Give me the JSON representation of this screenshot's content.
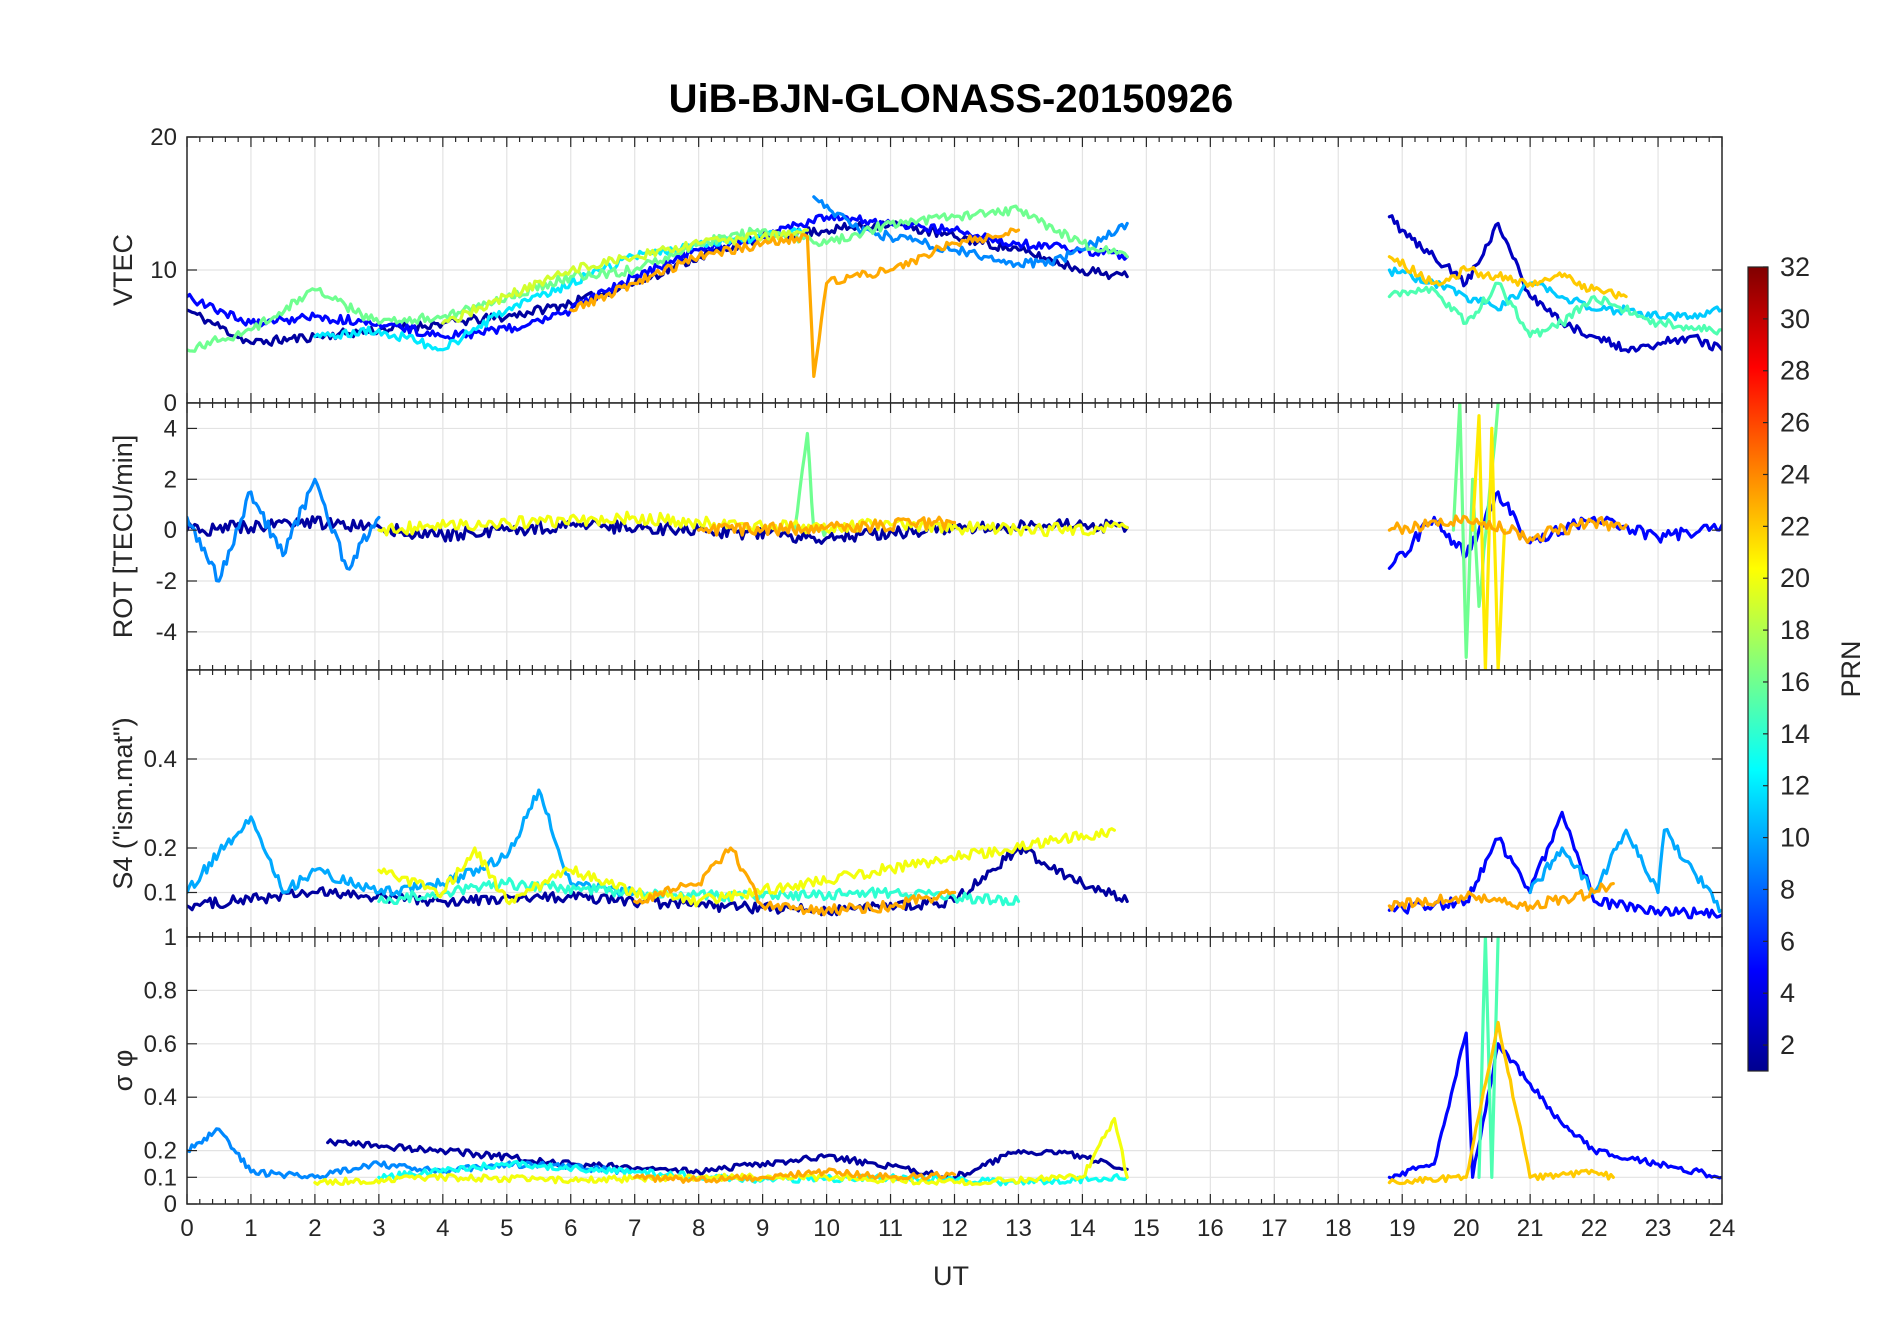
{
  "chart_data": {
    "type": "line",
    "title": "UiB-BJN-GLONASS-20150926",
    "xlabel": "UT",
    "xlim": [
      0,
      24
    ],
    "x_ticks": [
      "0",
      "1",
      "2",
      "3",
      "4",
      "5",
      "6",
      "7",
      "8",
      "9",
      "10",
      "11",
      "12",
      "13",
      "14",
      "15",
      "16",
      "17",
      "18",
      "19",
      "20",
      "21",
      "22",
      "23",
      "24"
    ],
    "grid": true,
    "legend": "colorbar-right",
    "data_gap": [
      14.7,
      18.8
    ],
    "colorbar": {
      "label": "PRN",
      "range": [
        1,
        32
      ],
      "ticks": [
        "2",
        "4",
        "6",
        "8",
        "10",
        "12",
        "14",
        "16",
        "18",
        "20",
        "22",
        "24",
        "26",
        "28",
        "30",
        "32"
      ]
    },
    "panels": [
      {
        "ylabel": "VTEC",
        "ylim": [
          0,
          20
        ],
        "yticks": [
          "0",
          "10",
          "20"
        ],
        "series": [
          {
            "prn": 2,
            "x": [
              0,
              1,
              2,
              3,
              4,
              5,
              6,
              7,
              8,
              9,
              10,
              11,
              12,
              13,
              14,
              14.7
            ],
            "y": [
              7,
              4.5,
              5,
              5.5,
              6,
              6.5,
              7.5,
              9,
              11,
              12.5,
              13,
              13.5,
              12.5,
              11.5,
              10,
              9.5
            ]
          },
          {
            "prn": 5,
            "x": [
              0,
              1,
              2,
              3,
              4,
              5,
              6,
              7,
              8,
              9,
              10,
              11,
              12,
              13,
              14,
              14.7
            ],
            "y": [
              8,
              6,
              6.5,
              6,
              5,
              5.5,
              7,
              9.5,
              11.5,
              12.5,
              14,
              13.5,
              13,
              12,
              11.5,
              11
            ]
          },
          {
            "prn": 9,
            "x": [
              9.8,
              10.5,
              11,
              11.5,
              12,
              12.5,
              13,
              13.5,
              14,
              14.7
            ],
            "y": [
              15.5,
              13,
              12.5,
              12,
              11.5,
              11,
              10.5,
              10.5,
              11.5,
              13.5
            ]
          },
          {
            "prn": 12,
            "x": [
              2,
              3,
              4,
              5,
              6,
              7,
              8,
              9,
              9.7
            ],
            "y": [
              5,
              5.5,
              4,
              7,
              9,
              11,
              12,
              12.5,
              13
            ]
          },
          {
            "prn": 16,
            "x": [
              0,
              1,
              2,
              3,
              4,
              5,
              6,
              7,
              8,
              9,
              10,
              11,
              12,
              13,
              14,
              14.7
            ],
            "y": [
              4,
              5.5,
              8.5,
              6,
              6.5,
              8,
              9.5,
              10,
              12,
              13,
              12,
              13.5,
              14,
              14.5,
              12,
              11
            ]
          },
          {
            "prn": 19,
            "x": [
              4,
              5,
              6,
              7,
              8,
              9,
              9.7
            ],
            "y": [
              6,
              8,
              10,
              11,
              12,
              12.5,
              13
            ]
          },
          {
            "prn": 23,
            "x": [
              6,
              7,
              8,
              9,
              9.7,
              9.8,
              10,
              11,
              12,
              13
            ],
            "y": [
              7,
              9,
              11,
              12,
              12.5,
              2,
              9,
              10,
              12,
              13
            ]
          },
          {
            "prn": 3,
            "x": [
              18.8,
              19,
              19.5,
              20,
              20.5,
              21,
              21.5,
              22,
              22.5,
              23,
              23.5,
              24
            ],
            "y": [
              14,
              13,
              11,
              9,
              13.5,
              8,
              6,
              5,
              4,
              4.5,
              5,
              4
            ]
          },
          {
            "prn": 11,
            "x": [
              18.8,
              19.5,
              20,
              20.5,
              21,
              21.5,
              22,
              22.5,
              23,
              23.5,
              24
            ],
            "y": [
              10,
              9,
              8,
              7,
              9,
              8,
              7,
              7,
              6.5,
              6.5,
              7
            ]
          },
          {
            "prn": 15,
            "x": [
              18.8,
              19.5,
              20,
              20.5,
              21,
              21.5,
              22,
              23,
              24
            ],
            "y": [
              8,
              8.5,
              6,
              9,
              5,
              6,
              8,
              6,
              5.5
            ]
          },
          {
            "prn": 22,
            "x": [
              18.8,
              19.5,
              20,
              20.5,
              21,
              21.5,
              22,
              22.5
            ],
            "y": [
              11,
              9,
              10,
              9.5,
              9,
              9.5,
              8.5,
              8
            ]
          }
        ]
      },
      {
        "ylabel": "ROT [TECU/min]",
        "ylim": [
          -5.5,
          5
        ],
        "yticks": [
          "-4",
          "-2",
          "0",
          "2",
          "4"
        ],
        "series": [
          {
            "prn": 2,
            "x": [
              0,
              2,
              4,
              6,
              8,
              10,
              12,
              14,
              14.7
            ],
            "y": [
              0,
              0.3,
              -0.2,
              0.2,
              0,
              -0.3,
              0.1,
              0.2,
              0.1
            ]
          },
          {
            "prn": 9,
            "x": [
              0,
              0.5,
              1,
              1.5,
              2,
              2.5,
              3
            ],
            "y": [
              0.5,
              -2,
              1.5,
              -1,
              2,
              -1.5,
              0.5
            ]
          },
          {
            "prn": 16,
            "x": [
              9.5,
              9.7,
              9.8,
              10
            ],
            "y": [
              0,
              3.8,
              0,
              0
            ]
          },
          {
            "prn": 20,
            "x": [
              3,
              5,
              7,
              9,
              11,
              13,
              14.7
            ],
            "y": [
              0,
              0.3,
              0.5,
              0.1,
              0.2,
              0,
              0.1
            ]
          },
          {
            "prn": 23,
            "x": [
              8,
              10,
              12
            ],
            "y": [
              0,
              0.1,
              0.3
            ]
          },
          {
            "prn": 5,
            "x": [
              18.8,
              19.5,
              20,
              20.5,
              21,
              22,
              23,
              24
            ],
            "y": [
              -1.5,
              0.5,
              -1,
              1.5,
              -0.5,
              0.5,
              -0.3,
              0.2
            ]
          },
          {
            "prn": 16,
            "x": [
              19.8,
              19.9,
              20,
              20.1,
              20.2,
              20.5
            ],
            "y": [
              0,
              5,
              -5,
              2,
              -3,
              5
            ]
          },
          {
            "prn": 21,
            "x": [
              20.1,
              20.2,
              20.3,
              20.4,
              20.5,
              20.6
            ],
            "y": [
              0,
              4.5,
              -5.5,
              4,
              -5.5,
              0
            ]
          },
          {
            "prn": 23,
            "x": [
              18.8,
              20,
              21,
              22,
              22.5
            ],
            "y": [
              0,
              0.5,
              -0.3,
              0.3,
              0.2
            ]
          }
        ]
      },
      {
        "ylabel": "S4 (\"ism.mat\")",
        "ylim": [
          0,
          0.6
        ],
        "yticks": [
          "0.1",
          "0.2",
          "0.4"
        ],
        "series": [
          {
            "prn": 2,
            "x": [
              0,
              2,
              4,
              6,
              8,
              10,
              12,
              13,
              14,
              14.7
            ],
            "y": [
              0.07,
              0.1,
              0.08,
              0.09,
              0.07,
              0.06,
              0.08,
              0.2,
              0.12,
              0.08
            ]
          },
          {
            "prn": 10,
            "x": [
              0,
              0.5,
              1,
              1.5,
              2,
              3,
              4,
              5,
              5.5,
              6,
              7
            ],
            "y": [
              0.1,
              0.19,
              0.27,
              0.1,
              0.15,
              0.1,
              0.12,
              0.18,
              0.33,
              0.12,
              0.1
            ]
          },
          {
            "prn": 14,
            "x": [
              3,
              5,
              7,
              9,
              11,
              13
            ],
            "y": [
              0.08,
              0.12,
              0.1,
              0.09,
              0.1,
              0.08
            ]
          },
          {
            "prn": 20,
            "x": [
              3,
              4,
              4.5,
              5,
              6,
              7,
              8,
              14.5
            ],
            "y": [
              0.15,
              0.1,
              0.2,
              0.08,
              0.15,
              0.1,
              0.08,
              0.24
            ]
          },
          {
            "prn": 23,
            "x": [
              7,
              8,
              8.5,
              9,
              10,
              11,
              12
            ],
            "y": [
              0.08,
              0.12,
              0.2,
              0.07,
              0.06,
              0.07,
              0.1
            ]
          },
          {
            "prn": 5,
            "x": [
              18.8,
              20,
              20.5,
              21,
              21.5,
              22,
              23,
              24
            ],
            "y": [
              0.06,
              0.08,
              0.22,
              0.1,
              0.28,
              0.08,
              0.06,
              0.05
            ]
          },
          {
            "prn": 10,
            "x": [
              21,
              21.5,
              22,
              22.5,
              23,
              23.1,
              24
            ],
            "y": [
              0.1,
              0.2,
              0.1,
              0.24,
              0.1,
              0.24,
              0.06
            ]
          },
          {
            "prn": 23,
            "x": [
              18.8,
              20,
              21,
              22,
              22.3
            ],
            "y": [
              0.07,
              0.09,
              0.07,
              0.1,
              0.12
            ]
          }
        ]
      },
      {
        "ylabel": "σ φ",
        "ylim": [
          0,
          1
        ],
        "yticks": [
          "0",
          "0.1",
          "0.2",
          "0.4",
          "0.6",
          "0.8",
          "1"
        ],
        "series": [
          {
            "prn": 2,
            "x": [
              2.2,
              4,
              6,
              8,
              10,
              12,
              13,
              14,
              14.7
            ],
            "y": [
              0.23,
              0.2,
              0.15,
              0.12,
              0.18,
              0.1,
              0.2,
              0.18,
              0.13
            ]
          },
          {
            "prn": 9,
            "x": [
              0,
              0.5,
              1,
              2,
              3,
              4,
              5,
              6,
              7
            ],
            "y": [
              0.2,
              0.28,
              0.12,
              0.1,
              0.15,
              0.12,
              0.15,
              0.14,
              0.12
            ]
          },
          {
            "prn": 13,
            "x": [
              3,
              5,
              7,
              9,
              11,
              13,
              14.7
            ],
            "y": [
              0.1,
              0.15,
              0.12,
              0.09,
              0.1,
              0.08,
              0.1
            ]
          },
          {
            "prn": 20,
            "x": [
              2,
              4,
              6,
              8,
              10,
              12,
              14,
              14.5,
              14.7
            ],
            "y": [
              0.08,
              0.1,
              0.09,
              0.1,
              0.1,
              0.08,
              0.1,
              0.32,
              0.1
            ]
          },
          {
            "prn": 23,
            "x": [
              7,
              8,
              9,
              10,
              11,
              12
            ],
            "y": [
              0.1,
              0.09,
              0.1,
              0.12,
              0.1,
              0.11
            ]
          },
          {
            "prn": 5,
            "x": [
              18.8,
              19.5,
              20,
              20.1,
              20.5,
              21,
              21.5,
              22,
              23,
              24
            ],
            "y": [
              0.1,
              0.15,
              0.64,
              0.1,
              0.6,
              0.45,
              0.3,
              0.2,
              0.15,
              0.1
            ]
          },
          {
            "prn": 15,
            "x": [
              20.2,
              20.3,
              20.4,
              20.5
            ],
            "y": [
              0.1,
              1,
              0.1,
              1
            ]
          },
          {
            "prn": 22,
            "x": [
              18.8,
              20,
              20.5,
              21,
              22,
              22.3
            ],
            "y": [
              0.08,
              0.1,
              0.68,
              0.1,
              0.12,
              0.1
            ]
          }
        ]
      }
    ]
  }
}
